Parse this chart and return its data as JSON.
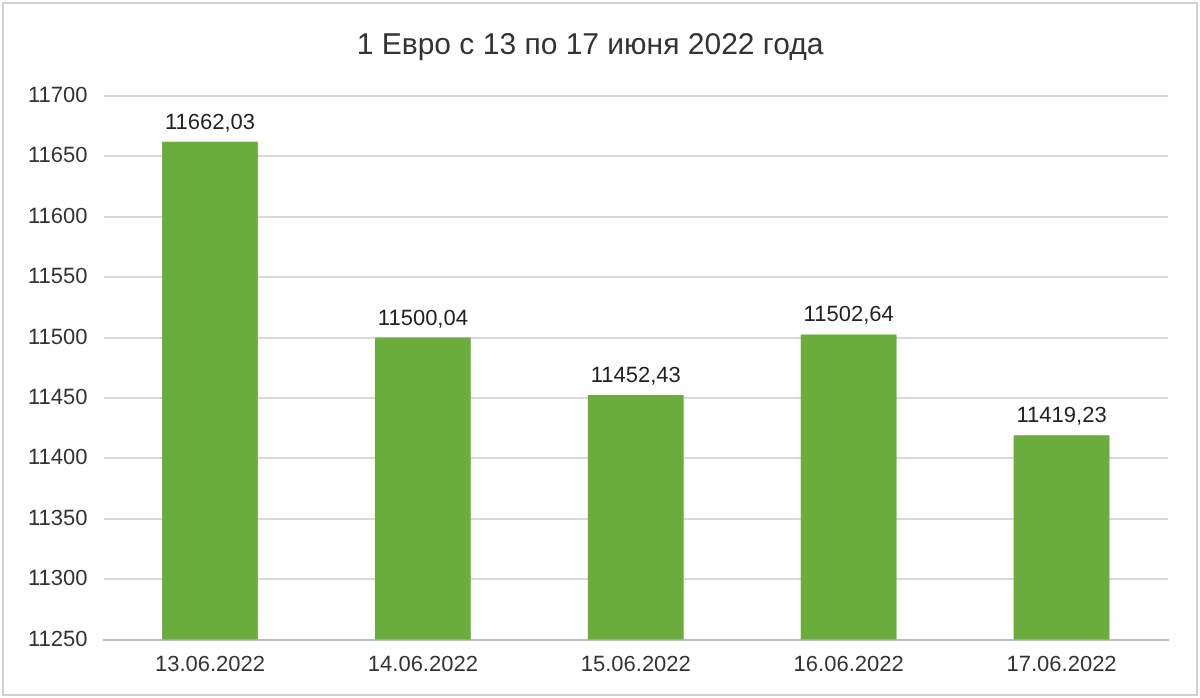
{
  "chart_data": {
    "type": "bar",
    "title": "1 Евро с 13 по 17 июня 2022 года",
    "categories": [
      "13.06.2022",
      "14.06.2022",
      "15.06.2022",
      "16.06.2022",
      "17.06.2022"
    ],
    "values": [
      11662.03,
      11500.04,
      11452.43,
      11502.64,
      11419.23
    ],
    "value_labels": [
      "11662,03",
      "11500,04",
      "11452,43",
      "11502,64",
      "11419,23"
    ],
    "color": "#6aad3d",
    "ylim": [
      11250,
      11700
    ],
    "yticks": [
      11250,
      11300,
      11350,
      11400,
      11450,
      11500,
      11550,
      11600,
      11650,
      11700
    ],
    "grid": "y",
    "legend": false
  }
}
